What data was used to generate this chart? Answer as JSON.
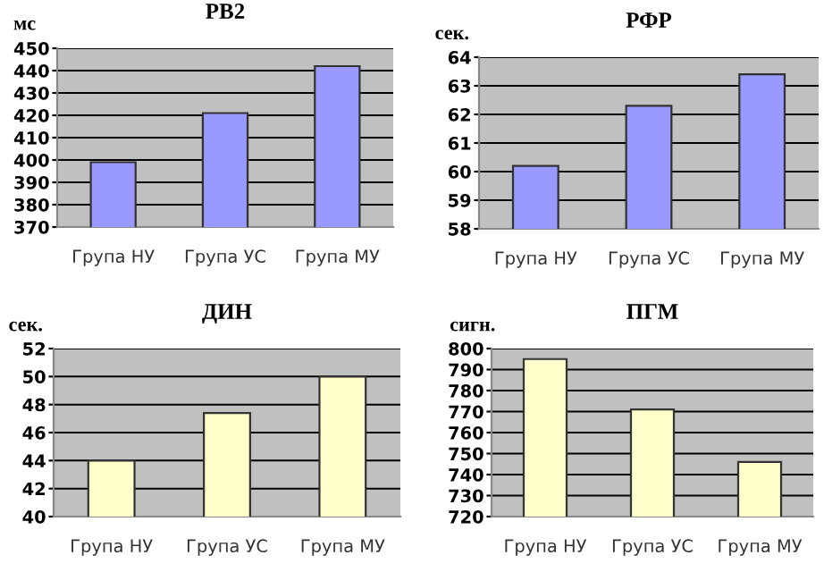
{
  "chart_data": [
    {
      "type": "bar",
      "title": "РВ2",
      "ylabel": "мс",
      "categories": [
        "Група НУ",
        "Група УС",
        "Група МУ"
      ],
      "values": [
        399,
        421,
        442
      ],
      "color": "#9999ff",
      "ylim": [
        370,
        450
      ],
      "yticks": [
        370,
        380,
        390,
        400,
        410,
        420,
        430,
        440,
        450
      ],
      "grid": "y"
    },
    {
      "type": "bar",
      "title": "РФР",
      "ylabel": "сек.",
      "categories": [
        "Група НУ",
        "Група УС",
        "Група МУ"
      ],
      "values": [
        60.2,
        62.3,
        63.4
      ],
      "color": "#9999ff",
      "ylim": [
        58,
        64
      ],
      "yticks": [
        58,
        59,
        60,
        61,
        62,
        63,
        64
      ],
      "grid": "y"
    },
    {
      "type": "bar",
      "title": "ДИН",
      "ylabel": "сек.",
      "categories": [
        "Група НУ",
        "Група УС",
        "Група МУ"
      ],
      "values": [
        44,
        47.4,
        50
      ],
      "color": "#ffffcc",
      "ylim": [
        40,
        52
      ],
      "yticks": [
        40,
        42,
        44,
        46,
        48,
        50,
        52
      ],
      "grid": "y"
    },
    {
      "type": "bar",
      "title": "ПГМ",
      "ylabel": "сигн.",
      "categories": [
        "Група НУ",
        "Група УС",
        "Група МУ"
      ],
      "values": [
        795,
        771,
        746
      ],
      "color": "#ffffcc",
      "ylim": [
        720,
        800
      ],
      "yticks": [
        720,
        730,
        740,
        750,
        760,
        770,
        780,
        790,
        800
      ],
      "grid": "y"
    }
  ]
}
